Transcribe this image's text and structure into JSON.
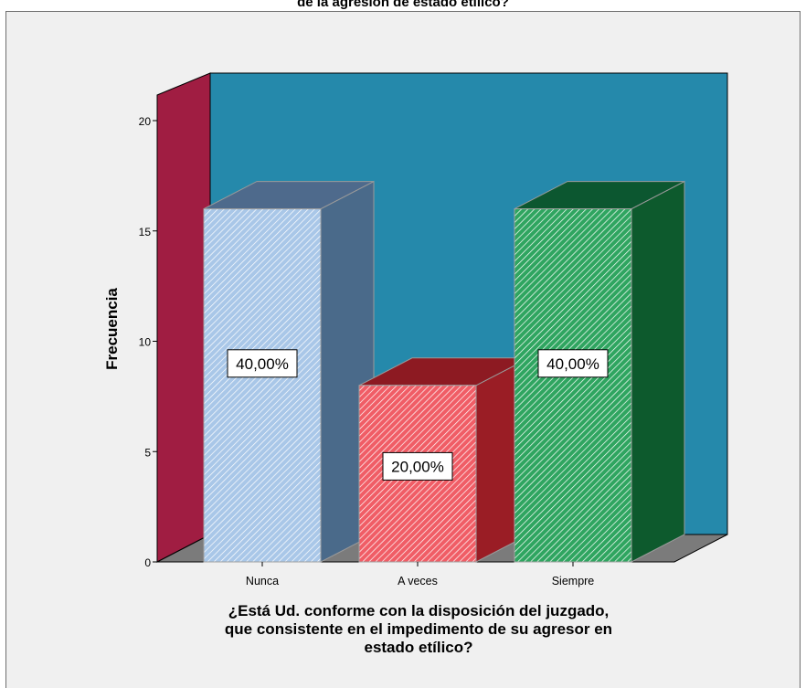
{
  "chart_data": {
    "type": "bar",
    "title": "de la agresión de estado etílico?",
    "categories": [
      "Nunca",
      "A veces",
      "Siempre"
    ],
    "values": [
      16,
      8,
      16
    ],
    "data_labels": [
      "40,00%",
      "20,00%",
      "40,00%"
    ],
    "ylabel": "Frecuencia",
    "xlabel_lines": [
      "¿Está Ud. conforme con la disposición del juzgado,",
      "que consistente en el impedimento de su agresor en",
      "estado etílico?"
    ],
    "ylim": [
      0,
      20
    ],
    "yticks": [
      0,
      5,
      10,
      15,
      20
    ],
    "grid": false,
    "legend": "none",
    "style": "3d",
    "colors": {
      "plot_area": "#f0f0f0",
      "back_wall": "#2589ab",
      "side_wall": "#a01d42",
      "floor": "#7b7b7b",
      "bars": [
        {
          "front": "#a9c7e8",
          "stripe": "#ffffff",
          "top": "#4e6a8c",
          "side": "#4a6a8a"
        },
        {
          "front": "#f05d66",
          "stripe": "#ffffff",
          "top": "#8d1a22",
          "side": "#9a1d25"
        },
        {
          "front": "#2fa560",
          "stripe": "#ffffff",
          "top": "#0c5730",
          "side": "#0d5a2d"
        }
      ]
    }
  }
}
